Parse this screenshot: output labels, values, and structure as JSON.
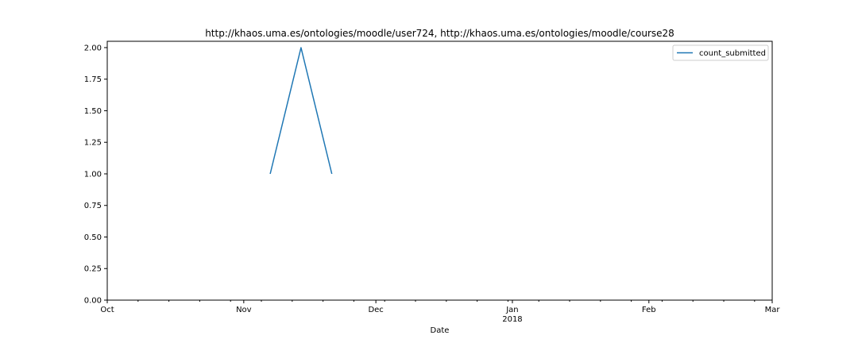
{
  "chart_data": {
    "type": "line",
    "title": "http://khaos.uma.es/ontologies/moodle/user724, http://khaos.uma.es/ontologies/moodle/course28",
    "xlabel": "Date",
    "ylabel": "",
    "x_range": [
      "2017-10-01",
      "2018-03-01"
    ],
    "ylim": [
      0.0,
      2.05
    ],
    "y_ticks": [
      0.0,
      0.25,
      0.5,
      0.75,
      1.0,
      1.25,
      1.5,
      1.75,
      2.0
    ],
    "y_tick_labels": [
      "0.00",
      "0.25",
      "0.50",
      "0.75",
      "1.00",
      "1.25",
      "1.50",
      "1.75",
      "2.00"
    ],
    "x_major_ticks": [
      {
        "date": "2017-10-01",
        "label": "Oct",
        "sublabel": ""
      },
      {
        "date": "2017-11-01",
        "label": "Nov",
        "sublabel": ""
      },
      {
        "date": "2017-12-01",
        "label": "Dec",
        "sublabel": ""
      },
      {
        "date": "2018-01-01",
        "label": "Jan",
        "sublabel": "2018"
      },
      {
        "date": "2018-02-01",
        "label": "Feb",
        "sublabel": ""
      },
      {
        "date": "2018-03-01",
        "label": "Mar",
        "sublabel": ""
      }
    ],
    "x_minor_ticks": [
      "2017-10-08",
      "2017-10-15",
      "2017-10-22",
      "2017-10-29",
      "2017-11-05",
      "2017-11-12",
      "2017-11-19",
      "2017-11-26",
      "2017-12-03",
      "2017-12-10",
      "2017-12-17",
      "2017-12-24",
      "2017-12-31",
      "2018-01-07",
      "2018-01-14",
      "2018-01-21",
      "2018-01-28",
      "2018-02-04",
      "2018-02-11",
      "2018-02-18",
      "2018-02-25"
    ],
    "grid": false,
    "legend_position": "top-right",
    "series": [
      {
        "name": "count_submitted",
        "color": "#1f77b4",
        "x": [
          "2017-11-07",
          "2017-11-14",
          "2017-11-21"
        ],
        "y": [
          1,
          2,
          1
        ]
      }
    ]
  }
}
